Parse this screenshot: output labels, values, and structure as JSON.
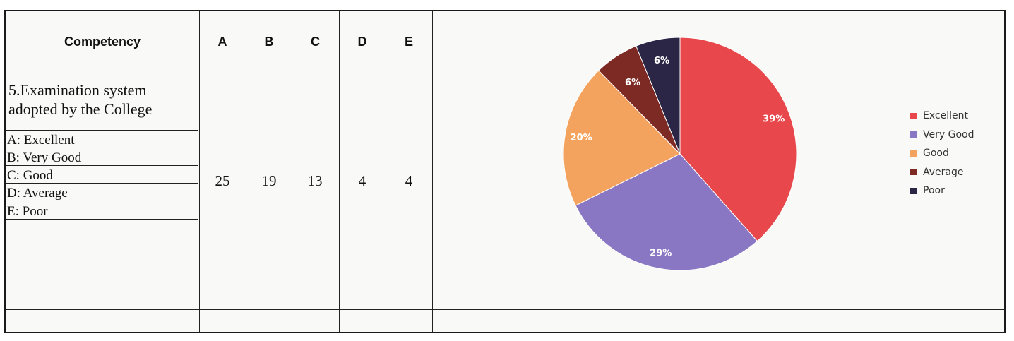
{
  "table": {
    "headers": [
      "Competency",
      "A",
      "B",
      "C",
      "D",
      "E"
    ],
    "competency": "5.Examination system adopted by the College",
    "options": [
      "A: Excellent",
      "B: Very Good",
      "C: Good",
      "D: Average",
      "E: Poor"
    ],
    "values": [
      "25",
      "19",
      "13",
      "4",
      "4"
    ]
  },
  "chart_data": {
    "type": "pie",
    "categories": [
      "Excellent",
      "Very Good",
      "Good",
      "Average",
      "Poor"
    ],
    "values": [
      25,
      19,
      13,
      4,
      4
    ],
    "labels": [
      "39%",
      "29%",
      "20%",
      "6%",
      "6%"
    ],
    "colors": [
      "#e8474b",
      "#8a77c4",
      "#f4a35e",
      "#7e2a24",
      "#2b2546"
    ],
    "legend_position": "right",
    "start_angle": "top",
    "direction": "clockwise"
  }
}
